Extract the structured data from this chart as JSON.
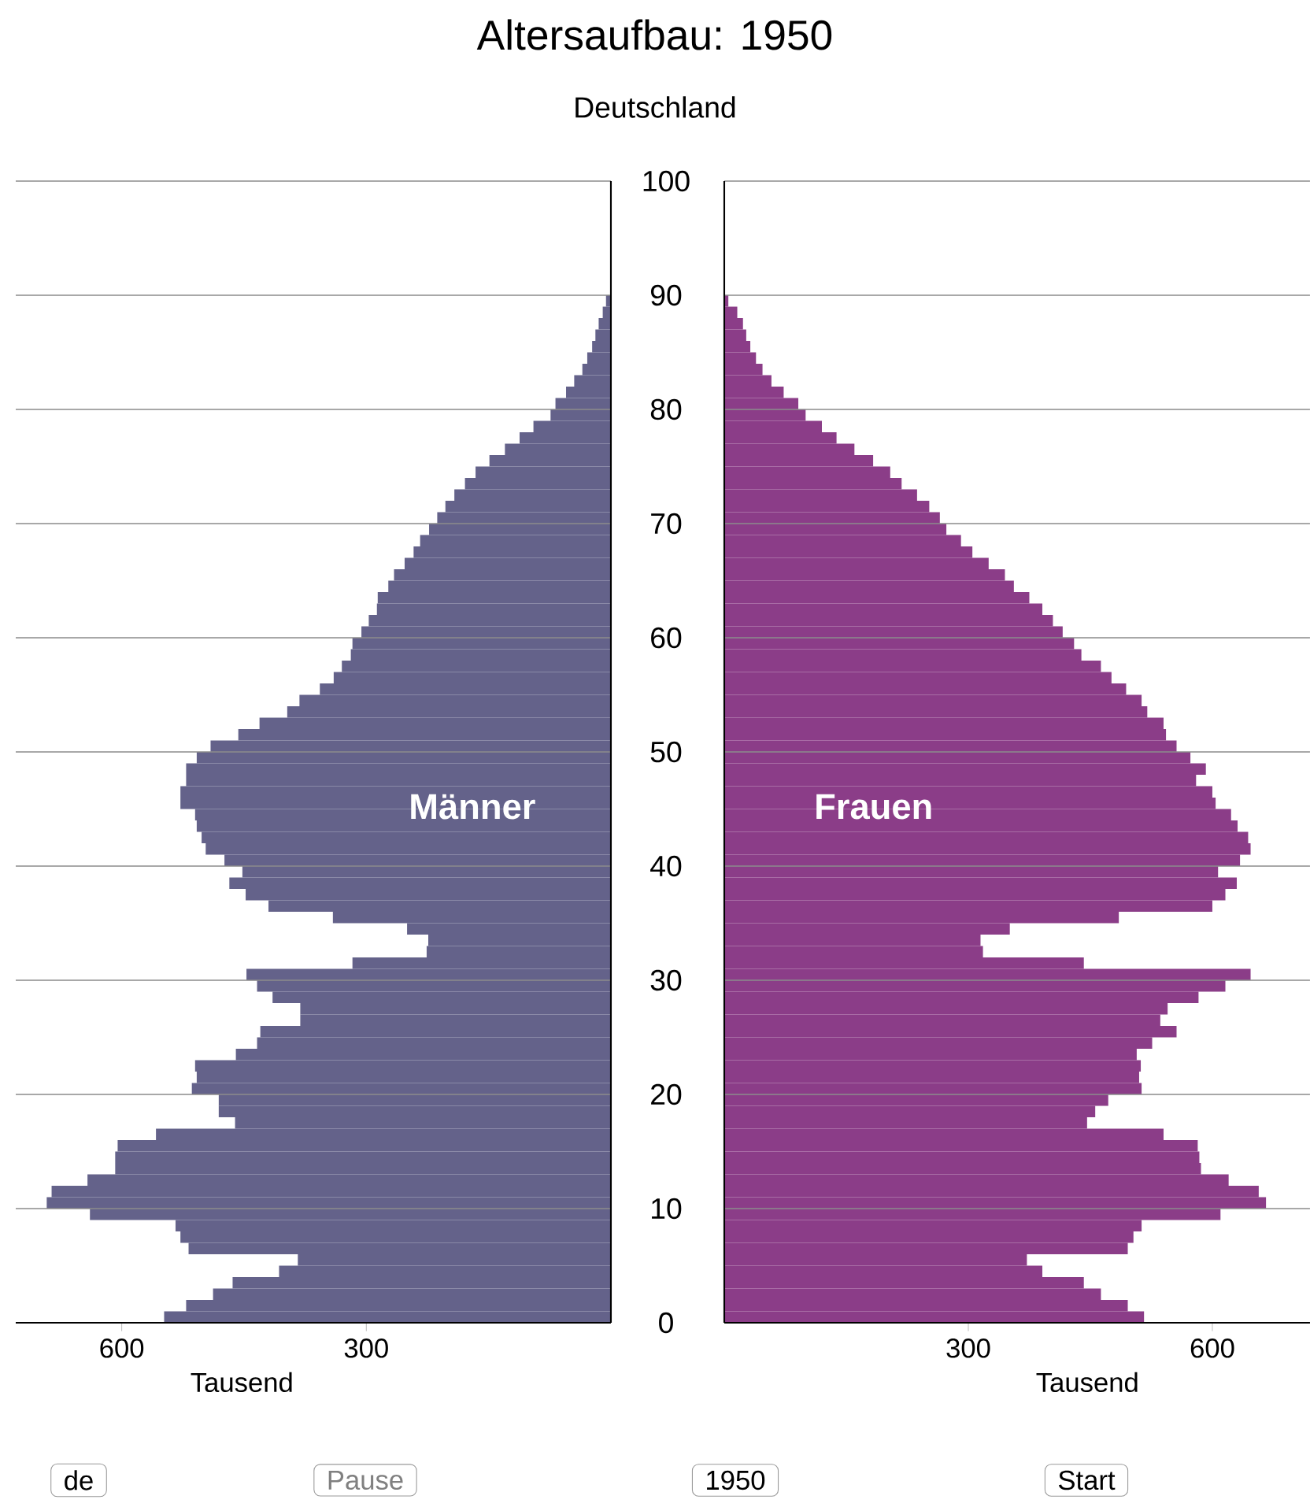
{
  "chart_data": [
    {
      "type": "bar",
      "orientation": "horizontal",
      "title": "Altersaufbau: 1950",
      "subtitle": "Deutschland",
      "xlabel": "Tausend",
      "annotations": [
        "de",
        "Pause"
      ],
      "x": [
        0.5,
        1.5,
        2.5,
        3.5,
        4.5,
        5.5,
        6.5,
        7.5,
        8.5,
        9.5,
        10.5,
        11.5,
        12.5,
        13.5,
        14.5,
        15.5,
        16.5,
        17.5,
        18.5,
        19.5,
        20.5,
        21.5,
        22.5,
        23.5,
        24.5,
        25.5,
        26.5,
        27.5,
        28.5,
        29.5,
        30.5,
        31.5,
        32.5,
        33.5,
        34.5,
        35.5,
        36.5,
        37.5,
        38.5,
        39.5,
        40.5,
        41.5,
        42.5,
        43.5,
        44.5,
        45.5,
        46.5,
        47.5,
        48.5,
        49.5,
        50.5,
        51.5,
        52.5,
        53.5,
        54.5,
        55.5,
        56.5,
        57.5,
        58.5,
        59.5,
        60.5,
        61.5,
        62.5,
        63.5,
        64.5,
        65.5,
        66.5,
        67.5,
        68.5,
        69.5,
        70.5,
        71.5,
        72.5,
        73.5,
        74.5,
        75.5,
        76.5,
        77.5,
        78.5,
        79.5,
        80.5,
        81.5,
        82.5,
        83.5,
        84.5,
        85.5,
        86.5,
        87.5,
        88.5,
        89.5
      ],
      "xlim": [
        730,
        0
      ],
      "xticks": [
        600,
        300
      ],
      "ylim": [
        0,
        100
      ],
      "yticks": [
        0,
        10,
        20,
        30,
        40,
        50,
        60,
        70,
        80,
        90,
        100
      ],
      "grid": "y",
      "tick_labels": "x",
      "series": [
        {
          "name": "Männer",
          "color": "#64628a",
          "values": [
            548,
            521,
            488,
            464,
            407,
            384,
            518,
            528,
            534,
            639,
            692,
            686,
            642,
            608,
            608,
            605,
            558,
            461,
            481,
            481,
            514,
            508,
            510,
            460,
            434,
            430,
            381,
            381,
            415,
            434,
            447,
            317,
            226,
            224,
            250,
            341,
            420,
            448,
            468,
            452,
            474,
            497,
            502,
            508,
            510,
            528,
            528,
            521,
            521,
            508,
            491,
            457,
            431,
            397,
            382,
            357,
            340,
            330,
            319,
            317,
            306,
            297,
            287,
            286,
            273,
            266,
            253,
            242,
            234,
            223,
            213,
            203,
            192,
            179,
            166,
            149,
            130,
            112,
            95,
            74,
            68,
            55,
            45,
            35,
            29,
            23,
            19,
            15,
            10,
            6
          ]
        }
      ]
    },
    {
      "type": "bar",
      "orientation": "horizontal",
      "xlabel": "Tausend",
      "annotations": [
        "1950",
        "Start"
      ],
      "x": [
        0.5,
        1.5,
        2.5,
        3.5,
        4.5,
        5.5,
        6.5,
        7.5,
        8.5,
        9.5,
        10.5,
        11.5,
        12.5,
        13.5,
        14.5,
        15.5,
        16.5,
        17.5,
        18.5,
        19.5,
        20.5,
        21.5,
        22.5,
        23.5,
        24.5,
        25.5,
        26.5,
        27.5,
        28.5,
        29.5,
        30.5,
        31.5,
        32.5,
        33.5,
        34.5,
        35.5,
        36.5,
        37.5,
        38.5,
        39.5,
        40.5,
        41.5,
        42.5,
        43.5,
        44.5,
        45.5,
        46.5,
        47.5,
        48.5,
        49.5,
        50.5,
        51.5,
        52.5,
        53.5,
        54.5,
        55.5,
        56.5,
        57.5,
        58.5,
        59.5,
        60.5,
        61.5,
        62.5,
        63.5,
        64.5,
        65.5,
        66.5,
        67.5,
        68.5,
        69.5,
        70.5,
        71.5,
        72.5,
        73.5,
        74.5,
        75.5,
        76.5,
        77.5,
        78.5,
        79.5,
        80.5,
        81.5,
        82.5,
        83.5,
        84.5,
        85.5,
        86.5,
        87.5,
        88.5,
        89.5
      ],
      "xlim": [
        0,
        720
      ],
      "xticks": [
        300,
        600
      ],
      "ylim": [
        0,
        100
      ],
      "yticks": [
        0,
        10,
        20,
        30,
        40,
        50,
        60,
        70,
        80,
        90,
        100
      ],
      "grid": "y",
      "series": [
        {
          "name": "Frauen",
          "color": "#8b3d88",
          "values": [
            516,
            496,
            463,
            442,
            391,
            372,
            496,
            503,
            513,
            610,
            666,
            657,
            620,
            586,
            584,
            582,
            540,
            446,
            456,
            472,
            513,
            510,
            512,
            507,
            526,
            556,
            536,
            545,
            583,
            616,
            647,
            442,
            318,
            315,
            351,
            485,
            600,
            616,
            630,
            607,
            634,
            647,
            644,
            631,
            623,
            604,
            600,
            580,
            592,
            573,
            556,
            543,
            540,
            520,
            513,
            494,
            476,
            463,
            439,
            430,
            416,
            404,
            391,
            375,
            356,
            345,
            325,
            305,
            291,
            273,
            265,
            252,
            237,
            218,
            204,
            183,
            160,
            138,
            120,
            100,
            91,
            73,
            58,
            47,
            39,
            32,
            27,
            23,
            16,
            5
          ]
        }
      ]
    }
  ]
}
